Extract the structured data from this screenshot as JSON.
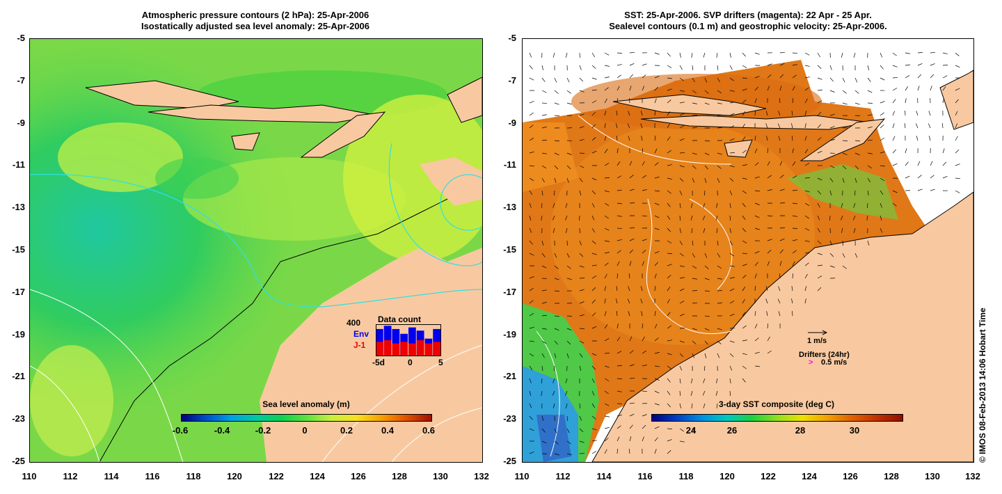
{
  "left_panel": {
    "title_line1": "Atmospheric pressure contours (2 hPa): 25-Apr-2006",
    "title_line2": "Isostatically adjusted sea level anomaly: 25-Apr-2006",
    "colorbar": {
      "title": "Sea level anomaly (m)",
      "ticks": [
        "-0.6",
        "-0.4",
        "-0.2",
        "0",
        "0.2",
        "0.4",
        "0.6"
      ]
    },
    "inset": {
      "title": "Data count",
      "max_label": "400",
      "env_label": "Env",
      "j1_label": "J-1",
      "x_ticks": [
        "-5d",
        "0",
        "5"
      ],
      "env_color": "#0000ee",
      "j1_color": "#ee0000",
      "env_values": [
        0.85,
        0.95,
        0.85,
        0.7,
        0.9,
        0.8,
        0.55,
        0.85
      ],
      "j1_values": [
        0.45,
        0.5,
        0.4,
        0.45,
        0.4,
        0.5,
        0.4,
        0.45
      ]
    }
  },
  "right_panel": {
    "title_line1": "SST: 25-Apr-2006. SVP drifters (magenta): 22 Apr - 25 Apr.",
    "title_line2": "Sealevel contours (0.1 m) and geostrophic velocity: 25-Apr-2006.",
    "colorbar": {
      "title": "3-day SST composite (deg C)",
      "ticks": [
        "24",
        "26",
        "28",
        "30"
      ]
    },
    "velocity_scale_label": "1 m/s",
    "drifters_label": "Drifters (24hr)",
    "drifter_scale_label": "0.5 m/s",
    "drifter_color": "#ff00ff"
  },
  "axes": {
    "y_ticks": [
      "-5",
      "-7",
      "-9",
      "-11",
      "-13",
      "-15",
      "-17",
      "-19",
      "-21",
      "-23",
      "-25"
    ],
    "x_ticks": [
      "110",
      "112",
      "114",
      "116",
      "118",
      "120",
      "122",
      "124",
      "126",
      "128",
      "130",
      "132"
    ]
  },
  "colors": {
    "land": "#f8c9a0",
    "sla_ramp": [
      "#00007f",
      "#0050c8",
      "#00a0e0",
      "#00c8a0",
      "#10d050",
      "#60e040",
      "#c8f040",
      "#f8e020",
      "#f8a000",
      "#e05000",
      "#a01000"
    ],
    "sst_ramp": [
      "#00007f",
      "#0040c0",
      "#0090e0",
      "#00c8c0",
      "#20d040",
      "#90e020",
      "#f0e000",
      "#f0a000",
      "#e06000",
      "#c03000",
      "#901000"
    ]
  },
  "copyright": "© IMOS 08-Feb-2013 14:06 Hobart Time"
}
